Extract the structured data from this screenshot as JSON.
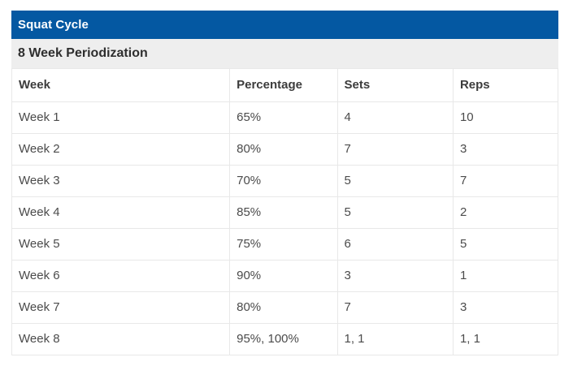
{
  "widget": {
    "title": "Squat Cycle",
    "subtitle": "8 Week Periodization"
  },
  "colors": {
    "title_bar_bg": "#0458a2",
    "title_text": "#ffffff",
    "subtitle_bar_bg": "#eeeeee",
    "table_border": "#e8e8e8",
    "header_text": "#3c3c3c",
    "cell_text": "#4b4b4b"
  },
  "table": {
    "columns": [
      "Week",
      "Percentage",
      "Sets",
      "Reps"
    ],
    "rows": [
      {
        "week": "Week 1",
        "percentage": "65%",
        "sets": "4",
        "reps": "10"
      },
      {
        "week": "Week 2",
        "percentage": "80%",
        "sets": "7",
        "reps": "3"
      },
      {
        "week": "Week 3",
        "percentage": "70%",
        "sets": "5",
        "reps": "7"
      },
      {
        "week": "Week 4",
        "percentage": "85%",
        "sets": "5",
        "reps": "2"
      },
      {
        "week": "Week 5",
        "percentage": "75%",
        "sets": "6",
        "reps": "5"
      },
      {
        "week": "Week 6",
        "percentage": "90%",
        "sets": "3",
        "reps": "1"
      },
      {
        "week": "Week 7",
        "percentage": "80%",
        "sets": "7",
        "reps": "3"
      },
      {
        "week": "Week 8",
        "percentage": "95%, 100%",
        "sets": "1, 1",
        "reps": "1, 1"
      }
    ]
  }
}
